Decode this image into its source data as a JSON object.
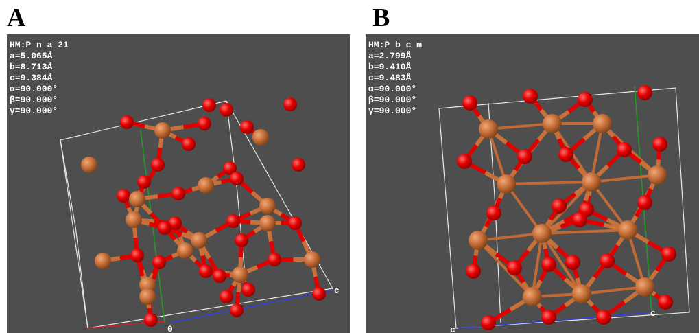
{
  "panels": [
    {
      "label": "A",
      "info": [
        "HM:P n a 21",
        "a=5.065Å",
        "b=8.713Å",
        "c=9.384Å",
        "α=90.000°",
        "β=90.000°",
        "γ=90.000°"
      ],
      "axis_labels": [
        "0",
        "c"
      ]
    },
    {
      "label": "B",
      "info": [
        "HM:P b c m",
        "a=2.799Å",
        "b=9.410Å",
        "c=9.483Å",
        "α=90.000°",
        "β=90.000°",
        "γ=90.000°"
      ],
      "axis_labels": [
        "c",
        "c"
      ]
    }
  ]
}
